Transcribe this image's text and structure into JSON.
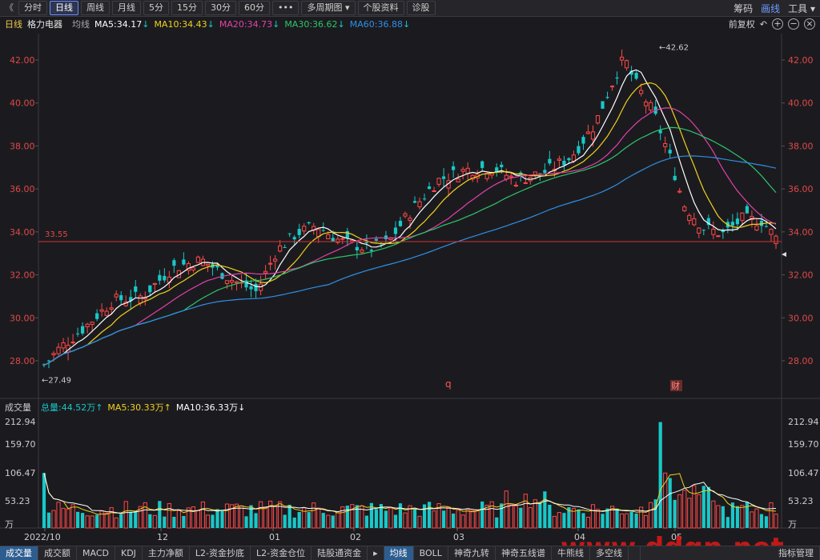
{
  "toolbar": {
    "back": "《",
    "buttons": [
      "分时",
      "日线",
      "周线",
      "月线",
      "5分",
      "15分",
      "30分",
      "60分",
      "•••",
      "多周期图 ▾",
      "个股资料",
      "诊股"
    ],
    "active_index": 1,
    "right": [
      "筹码",
      "画线",
      "工具 ▾"
    ]
  },
  "info": {
    "period": "日线",
    "name": "格力电器",
    "avg": "均线",
    "ma5": "MA5:34.17",
    "ma10": "MA10:34.43",
    "ma20": "MA20:34.73",
    "ma30": "MA30:36.62",
    "ma60": "MA60:36.88",
    "adj": "前复权"
  },
  "colors": {
    "up": "#ff4747",
    "down": "#19c8c8",
    "ma5": "#ffffff",
    "ma10": "#f2d11c",
    "ma20": "#e440a8",
    "ma30": "#2fc56a",
    "ma60": "#2f8fe6",
    "axis": "#e04848",
    "ref": "#d23030"
  },
  "price_axis": {
    "ticks": [
      "42.00",
      "40.00",
      "38.00",
      "36.00",
      "34.00",
      "32.00",
      "30.00",
      "28.00"
    ]
  },
  "markers": {
    "high": "42.62",
    "low": "27.49",
    "ref": "33.55",
    "q": "q",
    "cai": "财"
  },
  "vol_info": {
    "label": "成交量",
    "total": "总量:44.52万↑",
    "ma5": "MA5:30.33万↑",
    "ma10": "MA10:36.33万↓"
  },
  "vol_axis": {
    "ticks": [
      "212.94",
      "159.70",
      "106.47",
      "53.23",
      "万"
    ]
  },
  "date_axis": [
    "2022/10",
    "12",
    "01",
    "02",
    "03",
    "04",
    "05"
  ],
  "bottom_tabs": [
    "成交量",
    "成交额",
    "MACD",
    "KDJ",
    "主力净额",
    "L2-资金抄底",
    "L2-资金仓位",
    "陆股通资金",
    "▸",
    "均线",
    "BOLL",
    "神奇九转",
    "神奇五线谱",
    "牛熊线",
    "多空线",
    "",
    "指标管理"
  ],
  "active_tab": 0,
  "active_tab2": 9,
  "watermark": "www.ddgp.net"
}
